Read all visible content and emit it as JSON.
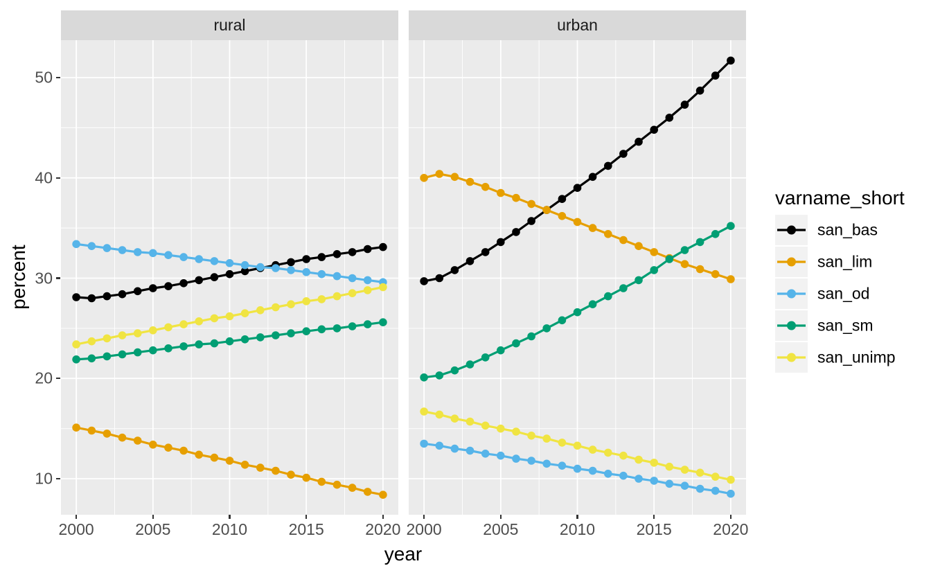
{
  "figure_title": "",
  "axes": {
    "x_title": "year",
    "y_title": "percent"
  },
  "legend": {
    "title": "varname_short",
    "entries": [
      {
        "label": "san_bas",
        "color": "#000000"
      },
      {
        "label": "san_lim",
        "color": "#E69F00"
      },
      {
        "label": "san_od",
        "color": "#56B4E9"
      },
      {
        "label": "san_sm",
        "color": "#009E73"
      },
      {
        "label": "san_unimp",
        "color": "#F0E442"
      }
    ]
  },
  "chart_data": {
    "type": "line",
    "title": "",
    "xlabel": "year",
    "ylabel": "percent",
    "legend_title": "varname_short",
    "legend_position": "right",
    "grid": true,
    "facets": [
      "rural",
      "urban"
    ],
    "x": [
      2000,
      2001,
      2002,
      2003,
      2004,
      2005,
      2006,
      2007,
      2008,
      2009,
      2010,
      2011,
      2012,
      2013,
      2014,
      2015,
      2016,
      2017,
      2018,
      2019,
      2020
    ],
    "x_ticks": [
      2000,
      2005,
      2010,
      2015,
      2020
    ],
    "x_minor_ticks": [
      2002.5,
      2007.5,
      2012.5,
      2017.5
    ],
    "y_ticks": [
      10,
      20,
      30,
      40,
      50
    ],
    "y_minor_ticks": [
      15,
      25,
      35,
      45
    ],
    "x_range": [
      1999,
      2021
    ],
    "y_range": [
      6.41,
      53.73
    ],
    "series": [
      {
        "name": "san_bas",
        "color": "#000000",
        "rural": [
          28.1,
          28.0,
          28.2,
          28.4,
          28.7,
          29.0,
          29.2,
          29.5,
          29.8,
          30.1,
          30.4,
          30.7,
          31.0,
          31.3,
          31.6,
          31.9,
          32.1,
          32.4,
          32.6,
          32.9,
          33.1
        ],
        "urban": [
          29.7,
          30.0,
          30.8,
          31.7,
          32.6,
          33.6,
          34.6,
          35.7,
          36.8,
          37.9,
          39.0,
          40.1,
          41.2,
          42.4,
          43.6,
          44.8,
          46.0,
          47.3,
          48.7,
          50.2,
          51.7
        ]
      },
      {
        "name": "san_lim",
        "color": "#E69F00",
        "rural": [
          15.1,
          14.8,
          14.5,
          14.1,
          13.8,
          13.4,
          13.1,
          12.8,
          12.4,
          12.1,
          11.8,
          11.4,
          11.1,
          10.8,
          10.4,
          10.1,
          9.7,
          9.4,
          9.1,
          8.7,
          8.4
        ],
        "urban": [
          40.0,
          40.4,
          40.1,
          39.6,
          39.1,
          38.5,
          38.0,
          37.4,
          36.8,
          36.2,
          35.6,
          35.0,
          34.4,
          33.8,
          33.2,
          32.6,
          32.0,
          31.4,
          30.9,
          30.4,
          29.9
        ]
      },
      {
        "name": "san_od",
        "color": "#56B4E9",
        "rural": [
          33.4,
          33.2,
          33.0,
          32.8,
          32.6,
          32.5,
          32.3,
          32.1,
          31.9,
          31.7,
          31.5,
          31.3,
          31.1,
          31.0,
          30.8,
          30.6,
          30.4,
          30.2,
          30.0,
          29.8,
          29.6
        ],
        "urban": [
          13.5,
          13.3,
          13.0,
          12.8,
          12.5,
          12.3,
          12.0,
          11.8,
          11.5,
          11.3,
          11.0,
          10.8,
          10.5,
          10.3,
          10.0,
          9.8,
          9.5,
          9.3,
          9.0,
          8.8,
          8.5
        ]
      },
      {
        "name": "san_sm",
        "color": "#009E73",
        "rural": [
          21.9,
          22.0,
          22.2,
          22.4,
          22.6,
          22.8,
          23.0,
          23.2,
          23.4,
          23.5,
          23.7,
          23.9,
          24.1,
          24.3,
          24.5,
          24.7,
          24.9,
          25.0,
          25.2,
          25.4,
          25.6
        ],
        "urban": [
          20.1,
          20.3,
          20.8,
          21.4,
          22.1,
          22.8,
          23.5,
          24.2,
          25.0,
          25.8,
          26.6,
          27.4,
          28.2,
          29.0,
          29.8,
          30.8,
          31.9,
          32.8,
          33.6,
          34.4,
          35.2
        ]
      },
      {
        "name": "san_unimp",
        "color": "#F0E442",
        "rural": [
          23.4,
          23.7,
          24.0,
          24.3,
          24.5,
          24.8,
          25.1,
          25.4,
          25.7,
          26.0,
          26.2,
          26.5,
          26.8,
          27.1,
          27.4,
          27.7,
          27.9,
          28.2,
          28.5,
          28.8,
          29.1
        ],
        "urban": [
          16.7,
          16.4,
          16.0,
          15.7,
          15.3,
          15.0,
          14.7,
          14.3,
          14.0,
          13.6,
          13.3,
          12.9,
          12.6,
          12.3,
          11.9,
          11.6,
          11.2,
          10.9,
          10.6,
          10.2,
          9.9
        ]
      }
    ],
    "style": {
      "panel_background": "#EBEBEB",
      "strip_background": "#D9D9D9",
      "grid_color": "#FFFFFF",
      "tick_color": "#333333",
      "tick_label_color": "#4D4D4D",
      "text_color": "#000000",
      "legend_key_background": "#F2F2F2"
    }
  }
}
